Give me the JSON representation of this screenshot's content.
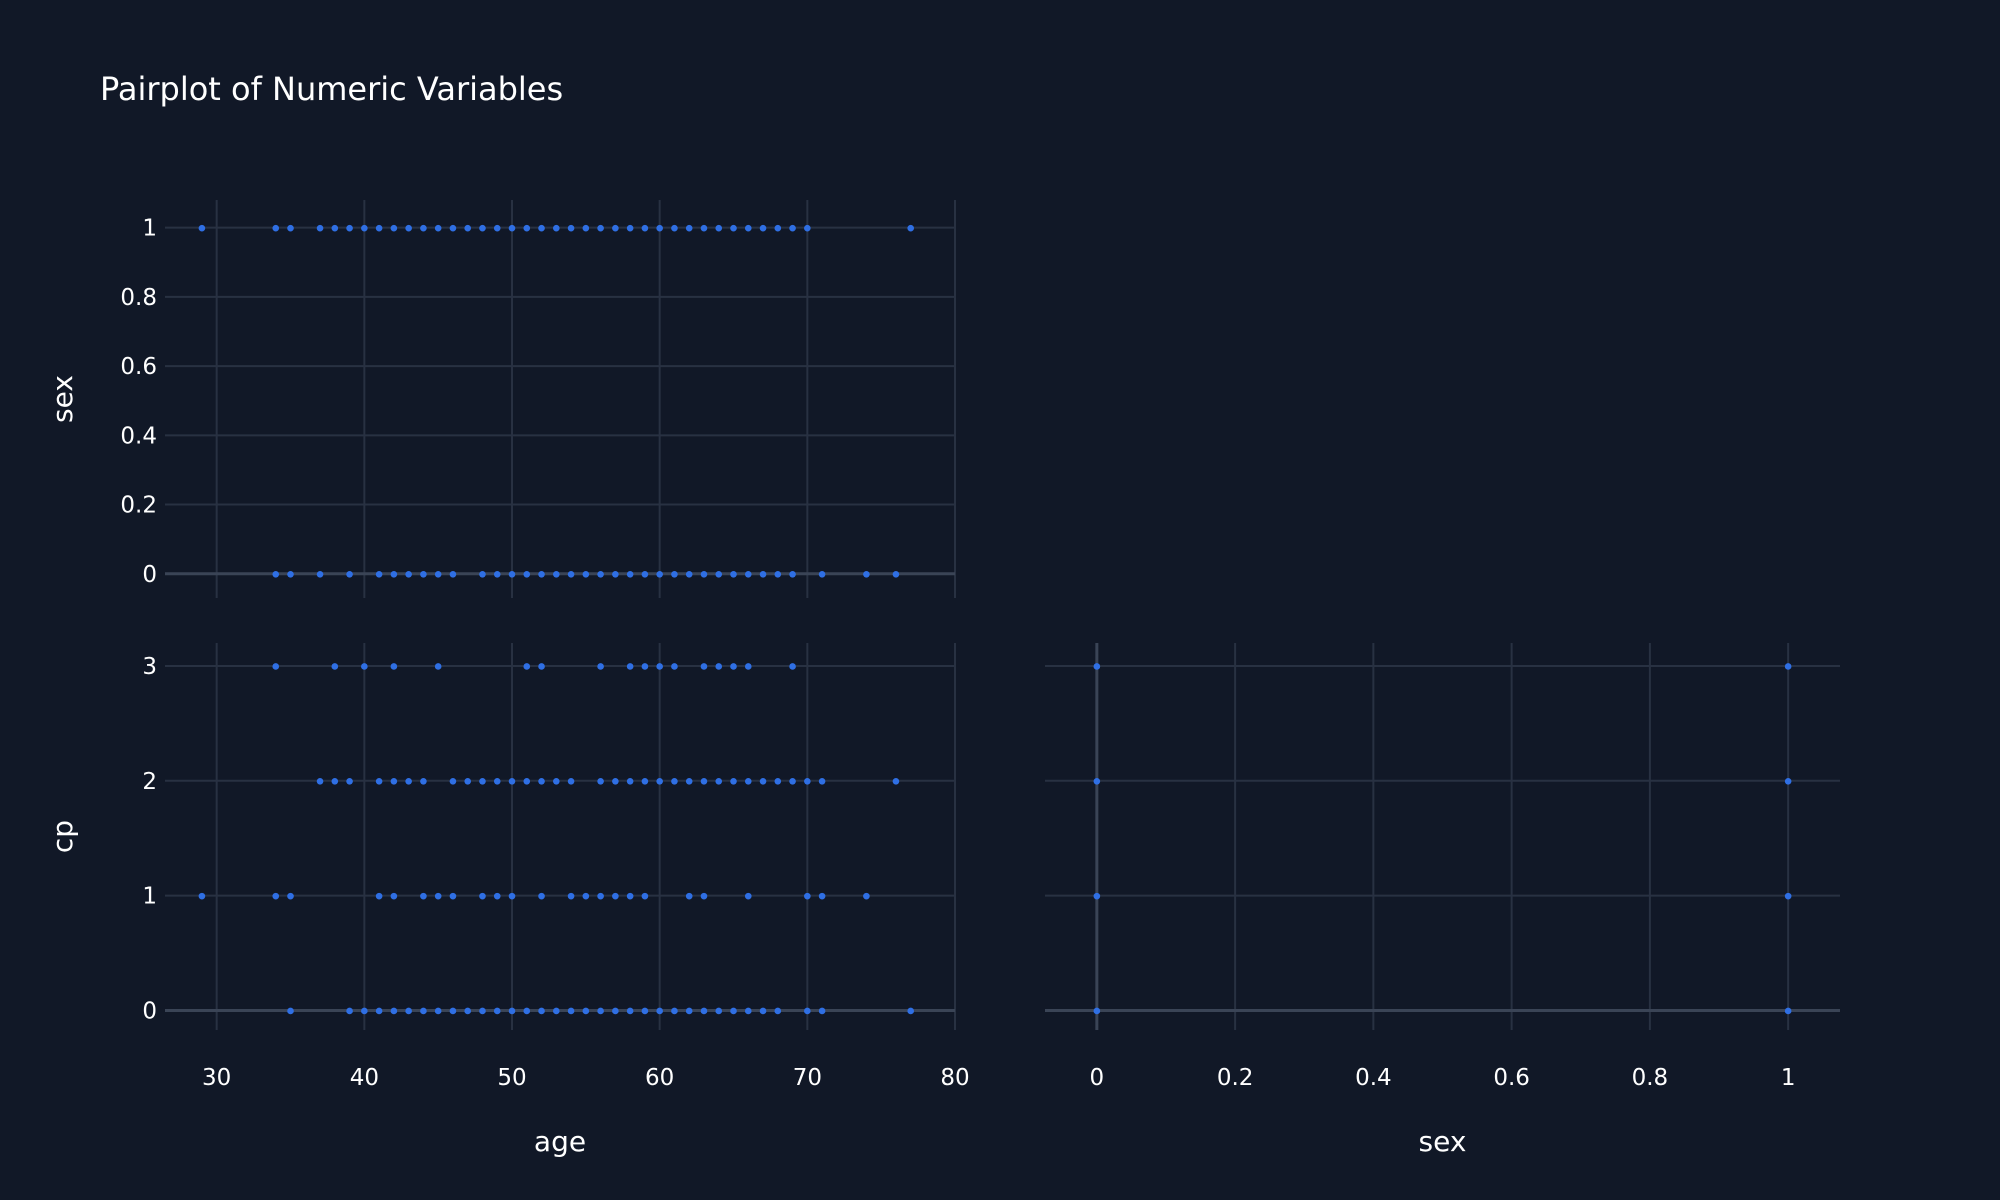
{
  "chart_data": {
    "type": "scatter",
    "title": "Pairplot of Numeric Variables",
    "marker_color": "#2f6fe4",
    "background": "#111827",
    "grid": true,
    "panels": [
      {
        "id": "age-vs-sex",
        "xlabel": "",
        "ylabel": "sex",
        "x_variable": "age",
        "xlim": [
          26.5,
          80
        ],
        "ylim": [
          -0.07,
          1.08
        ],
        "xticks": [
          30,
          40,
          50,
          60,
          70,
          80
        ],
        "yticks": [
          0,
          0.2,
          0.4,
          0.6,
          0.8,
          1
        ],
        "ytick_labels": [
          "0",
          "0.2",
          "0.4",
          "0.6",
          "0.8",
          "1"
        ],
        "series": [
          {
            "y": 1,
            "x": [
              29,
              34,
              35,
              37,
              38,
              39,
              40,
              41,
              42,
              43,
              44,
              45,
              46,
              47,
              48,
              49,
              50,
              51,
              52,
              53,
              54,
              55,
              56,
              57,
              58,
              59,
              60,
              61,
              62,
              63,
              64,
              65,
              66,
              67,
              68,
              69,
              70,
              77
            ]
          },
          {
            "y": 0,
            "x": [
              34,
              35,
              37,
              39,
              41,
              42,
              43,
              44,
              45,
              46,
              48,
              49,
              50,
              51,
              52,
              53,
              54,
              55,
              56,
              57,
              58,
              59,
              60,
              61,
              62,
              63,
              64,
              65,
              66,
              67,
              68,
              69,
              71,
              74,
              76
            ]
          }
        ]
      },
      {
        "id": "age-vs-cp",
        "xlabel": "age",
        "ylabel": "cp",
        "x_variable": "age",
        "xlim": [
          26.5,
          80
        ],
        "ylim": [
          -0.17,
          3.2
        ],
        "xticks": [
          30,
          40,
          50,
          60,
          70,
          80
        ],
        "yticks": [
          0,
          1,
          2,
          3
        ],
        "ytick_labels": [
          "0",
          "1",
          "2",
          "3"
        ],
        "series": [
          {
            "y": 3,
            "x": [
              34,
              38,
              40,
              42,
              45,
              51,
              52,
              56,
              58,
              59,
              60,
              61,
              63,
              64,
              65,
              66,
              69
            ]
          },
          {
            "y": 2,
            "x": [
              37,
              38,
              39,
              41,
              42,
              43,
              44,
              46,
              47,
              48,
              49,
              50,
              51,
              52,
              53,
              54,
              56,
              57,
              58,
              59,
              60,
              61,
              62,
              63,
              64,
              65,
              66,
              67,
              68,
              69,
              70,
              71,
              76
            ]
          },
          {
            "y": 1,
            "x": [
              29,
              34,
              35,
              41,
              42,
              44,
              45,
              46,
              48,
              49,
              50,
              52,
              54,
              55,
              56,
              57,
              58,
              59,
              62,
              63,
              66,
              70,
              71,
              74
            ]
          },
          {
            "y": 0,
            "x": [
              35,
              39,
              40,
              41,
              42,
              43,
              44,
              45,
              46,
              47,
              48,
              49,
              50,
              51,
              52,
              53,
              54,
              55,
              56,
              57,
              58,
              59,
              60,
              61,
              62,
              63,
              64,
              65,
              66,
              67,
              68,
              70,
              71,
              77
            ]
          }
        ]
      },
      {
        "id": "sex-vs-cp",
        "xlabel": "sex",
        "ylabel": "",
        "x_variable": "sex",
        "xlim": [
          -0.075,
          1.075
        ],
        "ylim": [
          -0.17,
          3.2
        ],
        "xticks": [
          0,
          0.2,
          0.4,
          0.6,
          0.8,
          1
        ],
        "xtick_labels": [
          "0",
          "0.2",
          "0.4",
          "0.6",
          "0.8",
          "1"
        ],
        "yticks": [
          0,
          1,
          2,
          3
        ],
        "show_yticks": false,
        "series": [
          {
            "y": 3,
            "x": [
              0,
              1
            ]
          },
          {
            "y": 2,
            "x": [
              0,
              1
            ]
          },
          {
            "y": 1,
            "x": [
              0,
              1
            ]
          },
          {
            "y": 0,
            "x": [
              0,
              1
            ]
          }
        ]
      }
    ]
  }
}
